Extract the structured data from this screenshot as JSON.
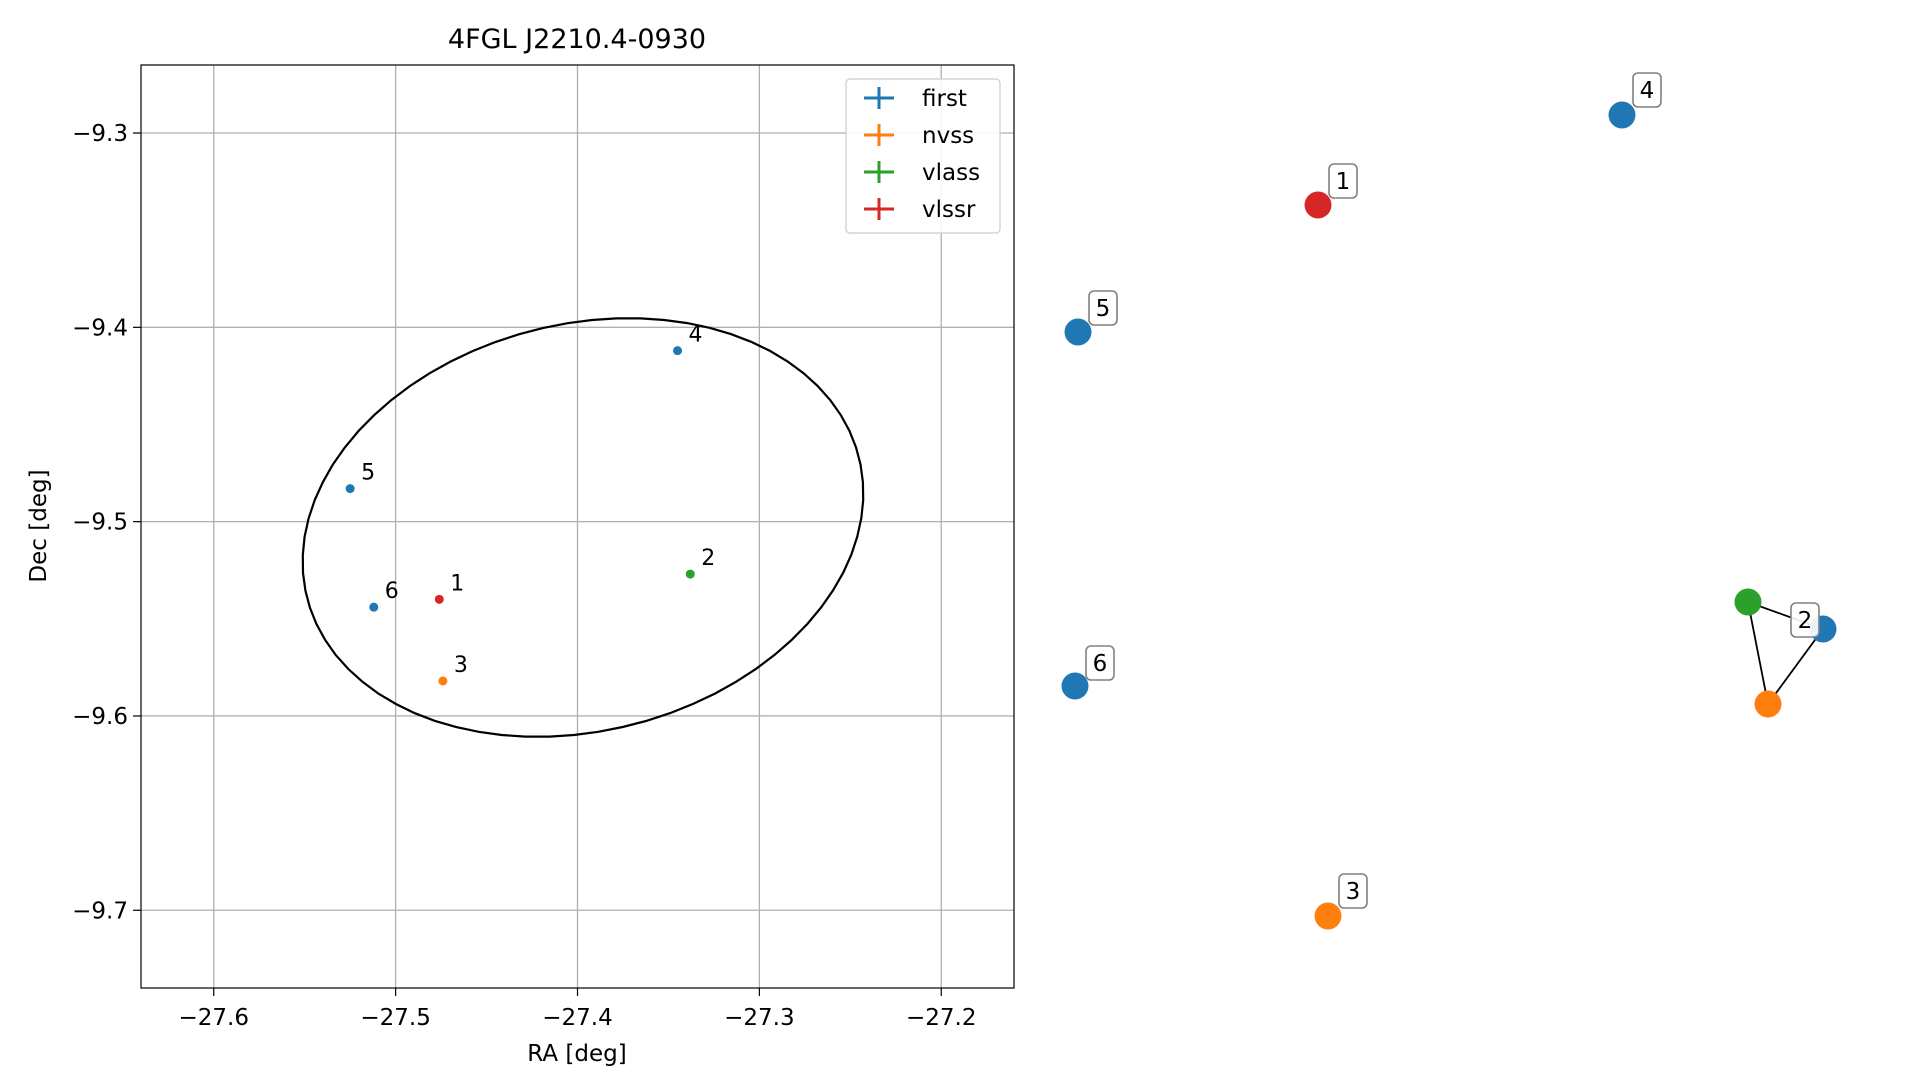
{
  "chart_data": [
    {
      "type": "scatter",
      "title": "4FGL J2210.4-0930",
      "xlabel": "RA [deg]",
      "ylabel": "Dec [deg]",
      "xlim": [
        -27.64,
        -27.16
      ],
      "ylim": [
        -9.74,
        -9.265
      ],
      "xticks": [
        -27.6,
        -27.5,
        -27.4,
        -27.3,
        -27.2
      ],
      "xtick_labels": [
        "−27.6",
        "−27.5",
        "−27.4",
        "−27.3",
        "−27.2"
      ],
      "yticks": [
        -9.3,
        -9.4,
        -9.5,
        -9.6,
        -9.7
      ],
      "ytick_labels": [
        "−9.3",
        "−9.4",
        "−9.5",
        "−9.6",
        "−9.7"
      ],
      "grid": true,
      "legend_position": "top-right",
      "series": [
        {
          "name": "first",
          "color": "#1f77b4",
          "points": [
            {
              "label": "4",
              "x": -27.345,
              "y": -9.412
            },
            {
              "label": "5",
              "x": -27.525,
              "y": -9.483
            },
            {
              "label": "6",
              "x": -27.512,
              "y": -9.544
            }
          ]
        },
        {
          "name": "nvss",
          "color": "#ff7f0e",
          "points": [
            {
              "label": "3",
              "x": -27.474,
              "y": -9.582
            }
          ]
        },
        {
          "name": "vlass",
          "color": "#2ca02c",
          "points": [
            {
              "label": "2",
              "x": -27.338,
              "y": -9.527
            }
          ]
        },
        {
          "name": "vlssr",
          "color": "#d62728",
          "points": [
            {
              "label": "1",
              "x": -27.476,
              "y": -9.54
            }
          ]
        }
      ],
      "ellipse": {
        "center": [
          -27.397,
          -9.503
        ],
        "semi_axis_ra": 0.156,
        "semi_axis_dec": 0.105,
        "angle_deg": 12,
        "color": "#000000"
      }
    },
    {
      "type": "network",
      "nodes": [
        {
          "id": "1",
          "color": "#d62728",
          "label": "1"
        },
        {
          "id": "2-first",
          "color": "#1f77b4",
          "label": ""
        },
        {
          "id": "2-vlass",
          "color": "#2ca02c",
          "label": ""
        },
        {
          "id": "2-nvss",
          "color": "#ff7f0e",
          "label": "2"
        },
        {
          "id": "3",
          "color": "#ff7f0e",
          "label": "3"
        },
        {
          "id": "4",
          "color": "#1f77b4",
          "label": "4"
        },
        {
          "id": "5",
          "color": "#1f77b4",
          "label": "5"
        },
        {
          "id": "6",
          "color": "#1f77b4",
          "label": "6"
        }
      ],
      "edges": [
        [
          "2-vlass",
          "2-first"
        ],
        [
          "2-vlass",
          "2-nvss"
        ],
        [
          "2-first",
          "2-nvss"
        ]
      ]
    }
  ]
}
